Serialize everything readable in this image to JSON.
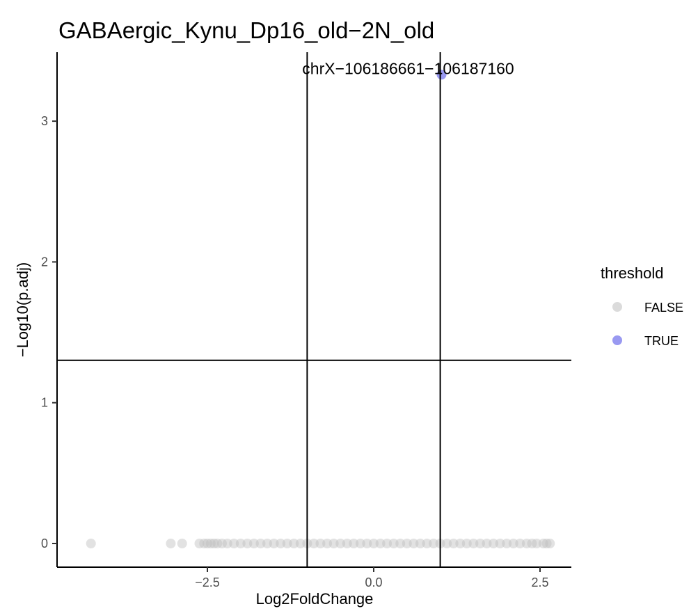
{
  "chart_data": {
    "type": "scatter",
    "title": "GABAergic_Kynu_Dp16_old−2N_old",
    "xlabel": "Log2FoldChange",
    "ylabel": "−Log10(p.adj)",
    "xlim": [
      -4.4,
      3.0
    ],
    "ylim": [
      -0.15,
      3.45
    ],
    "x_ticks": [
      {
        "value": -2.5,
        "label": "−2.5"
      },
      {
        "value": 0.0,
        "label": "0.0"
      },
      {
        "value": 2.5,
        "label": "2.5"
      }
    ],
    "y_ticks": [
      {
        "value": 0,
        "label": "0"
      },
      {
        "value": 1,
        "label": "1"
      },
      {
        "value": 2,
        "label": "2"
      },
      {
        "value": 3,
        "label": "3"
      }
    ],
    "reference_lines": {
      "vertical": [
        -1,
        1
      ],
      "horizontal": [
        1.30103
      ]
    },
    "grid": false,
    "legend": {
      "title": "threshold",
      "placement": "right",
      "entries": [
        {
          "label": "FALSE",
          "color": "#bebebe"
        },
        {
          "label": "TRUE",
          "color": "#8080ee"
        }
      ]
    },
    "series": [
      {
        "name": "FALSE",
        "color": "#bebebe",
        "points": [
          [
            -4.25,
            0
          ],
          [
            -3.05,
            0
          ],
          [
            -2.88,
            0
          ],
          [
            -2.62,
            0
          ],
          [
            -2.55,
            0
          ],
          [
            -2.5,
            0
          ],
          [
            -2.45,
            0
          ],
          [
            -2.4,
            0
          ],
          [
            -2.35,
            0
          ],
          [
            -2.28,
            0
          ],
          [
            -2.2,
            0
          ],
          [
            -2.1,
            0
          ],
          [
            -2.0,
            0
          ],
          [
            -1.9,
            0
          ],
          [
            -1.8,
            0
          ],
          [
            -1.7,
            0
          ],
          [
            -1.6,
            0
          ],
          [
            -1.5,
            0
          ],
          [
            -1.4,
            0
          ],
          [
            -1.3,
            0
          ],
          [
            -1.2,
            0
          ],
          [
            -1.1,
            0
          ],
          [
            -1.0,
            0
          ],
          [
            -0.9,
            0
          ],
          [
            -0.8,
            0
          ],
          [
            -0.7,
            0
          ],
          [
            -0.6,
            0
          ],
          [
            -0.5,
            0
          ],
          [
            -0.4,
            0
          ],
          [
            -0.3,
            0
          ],
          [
            -0.2,
            0
          ],
          [
            -0.1,
            0
          ],
          [
            0.0,
            0
          ],
          [
            0.1,
            0
          ],
          [
            0.2,
            0
          ],
          [
            0.3,
            0
          ],
          [
            0.4,
            0
          ],
          [
            0.5,
            0
          ],
          [
            0.6,
            0
          ],
          [
            0.7,
            0
          ],
          [
            0.8,
            0
          ],
          [
            0.9,
            0
          ],
          [
            1.0,
            0
          ],
          [
            1.1,
            0
          ],
          [
            1.2,
            0
          ],
          [
            1.3,
            0
          ],
          [
            1.4,
            0
          ],
          [
            1.5,
            0
          ],
          [
            1.6,
            0
          ],
          [
            1.7,
            0
          ],
          [
            1.8,
            0
          ],
          [
            1.9,
            0
          ],
          [
            2.0,
            0
          ],
          [
            2.1,
            0
          ],
          [
            2.2,
            0
          ],
          [
            2.3,
            0
          ],
          [
            2.38,
            0
          ],
          [
            2.45,
            0
          ],
          [
            2.55,
            0
          ],
          [
            2.6,
            0
          ],
          [
            2.65,
            0
          ]
        ]
      },
      {
        "name": "TRUE",
        "color": "#8080ee",
        "points": [
          [
            1.02,
            3.33
          ]
        ]
      }
    ],
    "annotations": [
      {
        "text": "chrX−106186661−106187160",
        "x": 1.02,
        "y": 3.33
      }
    ]
  }
}
